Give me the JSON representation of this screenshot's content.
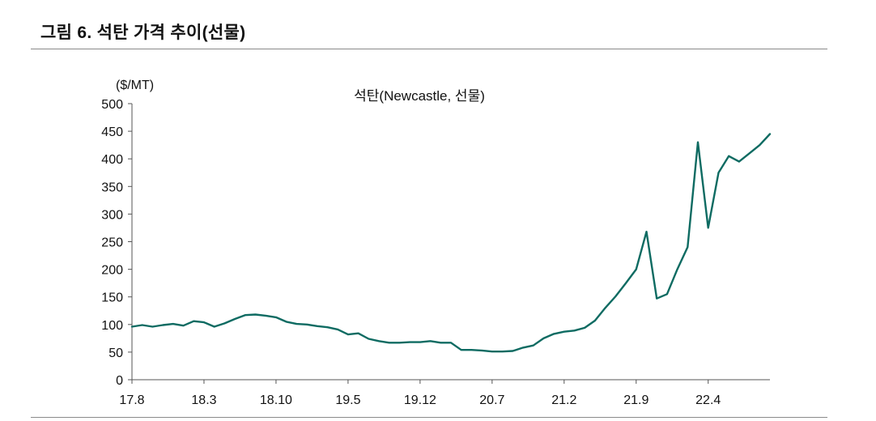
{
  "figure": {
    "title": "그림 6. 석탄 가격 추이(선물)"
  },
  "colors": {
    "series": "#0e6b62",
    "axis": "#555555",
    "rule": "#8a8a8a"
  },
  "chart_data": {
    "type": "line",
    "title": "석탄(Newcastle, 선물)",
    "unit_label": "($/MT)",
    "xlabel": "",
    "ylabel": "",
    "ylim": [
      0,
      500
    ],
    "yticks": [
      0,
      50,
      100,
      150,
      200,
      250,
      300,
      350,
      400,
      450,
      500
    ],
    "xlim": [
      "2017-08",
      "2022-10"
    ],
    "xticks": [
      "17.8",
      "18.3",
      "18.10",
      "19.5",
      "19.12",
      "20.7",
      "21.2",
      "21.9",
      "22.4"
    ],
    "grid": false,
    "legend": "none",
    "series": [
      {
        "name": "석탄(Newcastle, 선물)",
        "points": [
          [
            "2017-08",
            96
          ],
          [
            "2017-09",
            99
          ],
          [
            "2017-10",
            96
          ],
          [
            "2017-11",
            99
          ],
          [
            "2017-12",
            101
          ],
          [
            "2018-01",
            98
          ],
          [
            "2018-02",
            106
          ],
          [
            "2018-03",
            104
          ],
          [
            "2018-04",
            96
          ],
          [
            "2018-05",
            102
          ],
          [
            "2018-06",
            110
          ],
          [
            "2018-07",
            117
          ],
          [
            "2018-08",
            118
          ],
          [
            "2018-09",
            116
          ],
          [
            "2018-10",
            113
          ],
          [
            "2018-11",
            105
          ],
          [
            "2018-12",
            101
          ],
          [
            "2019-01",
            100
          ],
          [
            "2019-02",
            97
          ],
          [
            "2019-03",
            95
          ],
          [
            "2019-04",
            91
          ],
          [
            "2019-05",
            82
          ],
          [
            "2019-06",
            84
          ],
          [
            "2019-07",
            74
          ],
          [
            "2019-08",
            70
          ],
          [
            "2019-09",
            67
          ],
          [
            "2019-10",
            67
          ],
          [
            "2019-11",
            68
          ],
          [
            "2019-12",
            68
          ],
          [
            "2020-01",
            70
          ],
          [
            "2020-02",
            67
          ],
          [
            "2020-03",
            67
          ],
          [
            "2020-04",
            54
          ],
          [
            "2020-05",
            54
          ],
          [
            "2020-06",
            53
          ],
          [
            "2020-07",
            51
          ],
          [
            "2020-08",
            51
          ],
          [
            "2020-09",
            52
          ],
          [
            "2020-10",
            58
          ],
          [
            "2020-11",
            62
          ],
          [
            "2020-12",
            75
          ],
          [
            "2021-01",
            83
          ],
          [
            "2021-02",
            87
          ],
          [
            "2021-03",
            89
          ],
          [
            "2021-04",
            94
          ],
          [
            "2021-05",
            107
          ],
          [
            "2021-06",
            130
          ],
          [
            "2021-07",
            151
          ],
          [
            "2021-08",
            175
          ],
          [
            "2021-09",
            200
          ],
          [
            "2021-10",
            268
          ],
          [
            "2021-11",
            147
          ],
          [
            "2021-12",
            155
          ],
          [
            "2022-01",
            200
          ],
          [
            "2022-02",
            240
          ],
          [
            "2022-03",
            430
          ],
          [
            "2022-04",
            275
          ],
          [
            "2022-05",
            375
          ],
          [
            "2022-06",
            405
          ],
          [
            "2022-07",
            395
          ],
          [
            "2022-08",
            410
          ],
          [
            "2022-09",
            425
          ],
          [
            "2022-10",
            445
          ]
        ]
      }
    ]
  }
}
